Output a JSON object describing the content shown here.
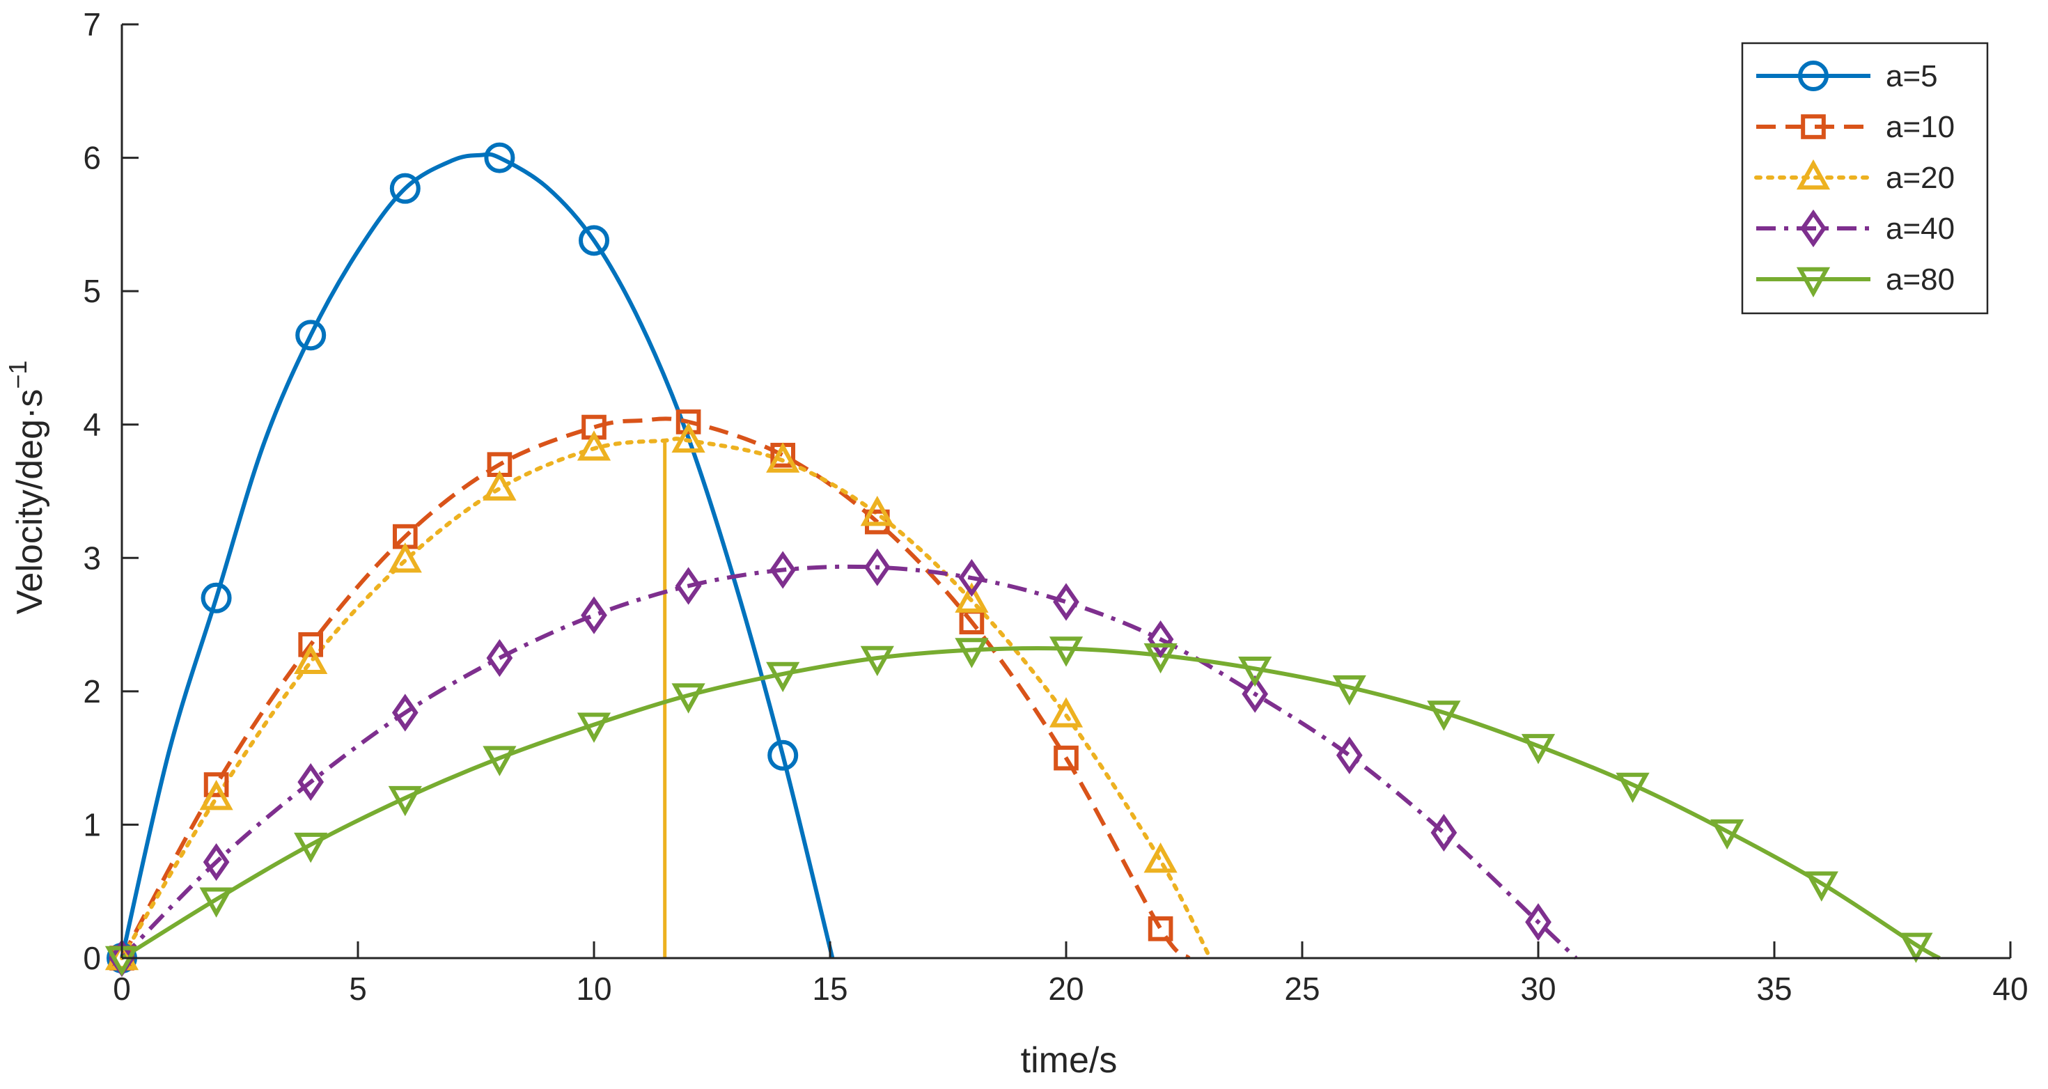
{
  "chart_data": {
    "type": "line",
    "title": "",
    "xlabel": "time/s",
    "ylabel": "Velocity/deg·s",
    "ylabel_superscript": "−1",
    "xlim": [
      0,
      40
    ],
    "ylim": [
      0,
      7
    ],
    "xticks": [
      "0",
      "5",
      "10",
      "15",
      "20",
      "25",
      "30",
      "35",
      "40"
    ],
    "yticks": [
      "0",
      "1",
      "2",
      "3",
      "4",
      "5",
      "6",
      "7"
    ],
    "grid": false,
    "legend_position": "top-right",
    "annotation": {
      "type": "vertical-line",
      "x": 11.5,
      "y_top": 3.88,
      "color": "#EDB120"
    },
    "series": [
      {
        "name": "a=5",
        "color": "#0072BD",
        "dash": "solid",
        "marker": "circle",
        "curve_x": [
          0,
          1,
          2,
          3,
          4,
          5,
          6,
          7,
          7.6,
          8,
          9,
          10,
          11,
          12,
          13,
          14,
          15.05
        ],
        "curve_y": [
          0,
          1.55,
          2.7,
          3.85,
          4.67,
          5.3,
          5.77,
          5.98,
          6.02,
          6.0,
          5.78,
          5.38,
          4.75,
          3.9,
          2.8,
          1.52,
          0
        ],
        "marker_x": [
          0,
          2,
          4,
          6,
          8,
          10,
          14
        ],
        "marker_y": [
          0,
          2.7,
          4.67,
          5.77,
          6.0,
          5.38,
          1.52
        ]
      },
      {
        "name": "a=10",
        "color": "#D95319",
        "dash": "dashed",
        "marker": "square",
        "curve_x": [
          0,
          2,
          4,
          6,
          8,
          10,
          11,
          12,
          14,
          16,
          18,
          20,
          22,
          22.6
        ],
        "curve_y": [
          0,
          1.3,
          2.35,
          3.16,
          3.7,
          3.98,
          4.03,
          4.02,
          3.77,
          3.27,
          2.52,
          1.5,
          0.22,
          0
        ],
        "marker_x": [
          0,
          2,
          4,
          6,
          8,
          10,
          12,
          14,
          16,
          18,
          20,
          22
        ],
        "marker_y": [
          0,
          1.3,
          2.35,
          3.16,
          3.7,
          3.98,
          4.02,
          3.77,
          3.27,
          2.52,
          1.5,
          0.22
        ]
      },
      {
        "name": "a=20",
        "color": "#EDB120",
        "dash": "dotted",
        "marker": "triangle-up",
        "curve_x": [
          0,
          2,
          4,
          6,
          8,
          10,
          11.5,
          12,
          14,
          16,
          18,
          20,
          22,
          23.05
        ],
        "curve_y": [
          0,
          1.2,
          2.22,
          2.98,
          3.52,
          3.82,
          3.88,
          3.88,
          3.73,
          3.33,
          2.68,
          1.82,
          0.73,
          0
        ],
        "marker_x": [
          0,
          2,
          4,
          6,
          8,
          10,
          12,
          14,
          16,
          18,
          20,
          22
        ],
        "marker_y": [
          0,
          1.2,
          2.22,
          2.98,
          3.52,
          3.82,
          3.88,
          3.73,
          3.33,
          2.68,
          1.82,
          0.73
        ]
      },
      {
        "name": "a=40",
        "color": "#7E2F8E",
        "dash": "dashdot",
        "marker": "diamond",
        "curve_x": [
          0,
          2,
          4,
          6,
          8,
          10,
          12,
          14,
          16,
          18,
          20,
          22,
          24,
          26,
          28,
          30,
          30.8
        ],
        "curve_y": [
          0,
          0.72,
          1.32,
          1.84,
          2.25,
          2.57,
          2.79,
          2.91,
          2.93,
          2.85,
          2.67,
          2.39,
          1.98,
          1.52,
          0.94,
          0.27,
          0
        ],
        "marker_x": [
          0,
          2,
          4,
          6,
          8,
          10,
          12,
          14,
          16,
          18,
          20,
          22,
          24,
          26,
          28,
          30
        ],
        "marker_y": [
          0,
          0.72,
          1.32,
          1.84,
          2.25,
          2.57,
          2.79,
          2.91,
          2.93,
          2.85,
          2.67,
          2.39,
          1.98,
          1.52,
          0.94,
          0.27
        ]
      },
      {
        "name": "a=80",
        "color": "#77AC30",
        "dash": "solid",
        "marker": "triangle-down",
        "curve_x": [
          0,
          2,
          4,
          6,
          8,
          10,
          12,
          14,
          16,
          18,
          20,
          22,
          24,
          26,
          28,
          30,
          32,
          34,
          36,
          38,
          38.5
        ],
        "curve_y": [
          0,
          0.44,
          0.85,
          1.2,
          1.5,
          1.75,
          1.97,
          2.13,
          2.25,
          2.31,
          2.32,
          2.27,
          2.17,
          2.03,
          1.84,
          1.59,
          1.3,
          0.95,
          0.56,
          0.1,
          0
        ],
        "marker_x": [
          0,
          2,
          4,
          6,
          8,
          10,
          12,
          14,
          16,
          18,
          20,
          22,
          24,
          26,
          28,
          30,
          32,
          34,
          36,
          38
        ],
        "marker_y": [
          0,
          0.44,
          0.85,
          1.2,
          1.5,
          1.75,
          1.97,
          2.13,
          2.25,
          2.31,
          2.32,
          2.27,
          2.17,
          2.03,
          1.84,
          1.59,
          1.3,
          0.95,
          0.56,
          0.1
        ]
      }
    ]
  }
}
